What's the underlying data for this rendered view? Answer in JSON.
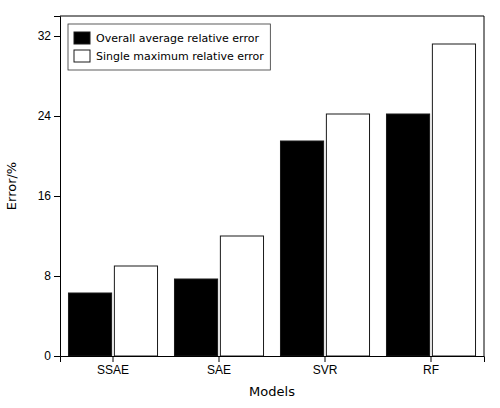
{
  "chart_data": {
    "type": "bar",
    "xlabel": "Models",
    "ylabel": "Error/%",
    "categories": [
      "SSAE",
      "SAE",
      "SVR",
      "RF"
    ],
    "series": [
      {
        "name": "Overall average relative error",
        "color": "#000000",
        "values": [
          6.3,
          7.7,
          21.5,
          24.2
        ]
      },
      {
        "name": "Single maximum relative error",
        "color": "#ffffff",
        "values": [
          9.0,
          12.0,
          24.2,
          31.2
        ]
      }
    ],
    "ylim": [
      0,
      34
    ],
    "yticks": [
      0,
      8,
      16,
      24,
      32
    ],
    "grid": false,
    "legend": "upper left"
  }
}
